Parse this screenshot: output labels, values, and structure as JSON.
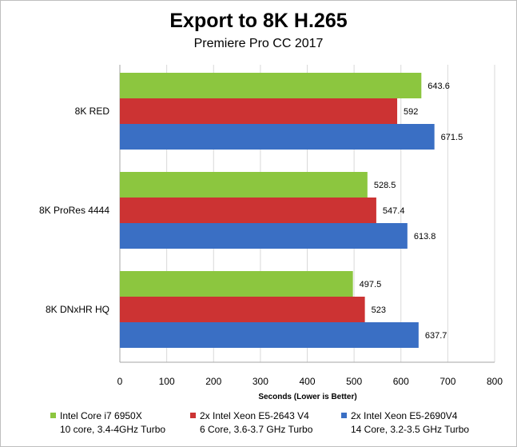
{
  "chart_data": {
    "type": "bar",
    "orientation": "horizontal",
    "title": "Export to 8K H.265",
    "subtitle": "Premiere Pro CC 2017",
    "xlabel": "Seconds  (Lower is Better)",
    "ylabel": "",
    "xlim": [
      0,
      800
    ],
    "xticks": [
      "0",
      "100",
      "200",
      "300",
      "400",
      "500",
      "600",
      "700",
      "800"
    ],
    "grid": true,
    "legend_position": "bottom",
    "categories": [
      "8K RED",
      "8K ProRes 4444",
      "8K DNxHR  HQ"
    ],
    "series": [
      {
        "name": "Intel Core i7 6950X",
        "detail": "10 core, 3.4-4GHz Turbo",
        "color": "#8cc63f",
        "values": [
          643.6,
          528.5,
          497.5
        ],
        "labels": [
          "643.6",
          "528.5",
          "497.5"
        ]
      },
      {
        "name": "2x Intel Xeon E5-2643 V4",
        "detail": "6 Core, 3.6-3.7 GHz Turbo",
        "color": "#cc3333",
        "values": [
          592,
          547.4,
          523
        ],
        "labels": [
          "592",
          "547.4",
          "523"
        ]
      },
      {
        "name": "2x Intel Xeon E5-2690V4",
        "detail": "14 Core, 3.2-3.5 GHz Turbo",
        "color": "#3a6fc4",
        "values": [
          671.5,
          613.8,
          637.7
        ],
        "labels": [
          "671.5",
          "613.8",
          "637.7"
        ]
      }
    ]
  }
}
